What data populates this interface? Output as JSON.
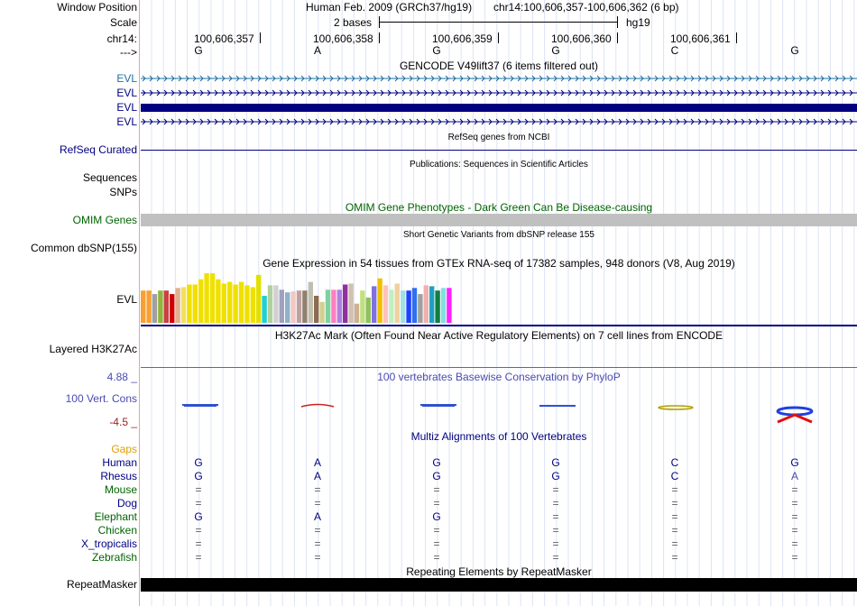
{
  "header": {
    "window_position_label": "Window Position",
    "scale_label": "Scale",
    "chrom_label": "chr14:",
    "strand_label": "--->",
    "assembly": "Human Feb. 2009 (GRCh37/hg19)",
    "position": "chr14:100,606,357-100,606,362 (6 bp)",
    "scale_text": "2 bases",
    "db": "hg19",
    "ticks": [
      "100,606,357",
      "100,606,358",
      "100,606,359",
      "100,606,360",
      "100,606,361"
    ],
    "bases": [
      "G",
      "A",
      "G",
      "G",
      "C",
      "G"
    ]
  },
  "gencode": {
    "title": "GENCODE V49lift37 (6 items filtered out)",
    "labels": [
      "EVL",
      "EVL",
      "EVL",
      "EVL"
    ]
  },
  "refseq": {
    "label": "RefSeq Curated",
    "title": "RefSeq genes from NCBI"
  },
  "publications": {
    "title": "Publications: Sequences in Scientific Articles",
    "labels": [
      "Sequences",
      "SNPs"
    ]
  },
  "omim": {
    "title": "OMIM Gene Phenotypes - Dark Green Can Be Disease-causing",
    "label": "OMIM Genes"
  },
  "dbsnp": {
    "label": "Common dbSNP(155)",
    "title": "Short Genetic Variants from dbSNP release 155"
  },
  "gtex": {
    "title": "Gene Expression in 54 tissues from GTEx RNA-seq of 17382 samples, 948 donors (V8, Aug 2019)",
    "label": "EVL"
  },
  "chart_data": {
    "type": "bar",
    "title": "Gene Expression in 54 tissues from GTEx RNA-seq of 17382 samples, 948 donors (V8, Aug 2019)",
    "values": [
      37,
      37,
      33,
      37,
      37,
      33,
      40,
      41,
      44,
      44,
      50,
      57,
      57,
      50,
      45,
      47,
      44,
      47,
      43,
      41,
      55,
      31,
      43,
      43,
      38,
      35,
      36,
      37,
      37,
      47,
      31,
      24,
      38,
      38,
      38,
      44,
      45,
      22,
      37,
      29,
      42,
      51,
      43,
      38,
      45,
      37,
      37,
      40,
      33,
      43,
      42,
      37,
      40,
      40
    ],
    "colors": [
      "#f8a033",
      "#f8a033",
      "#a0a0a0",
      "#90b43c",
      "#cc4040",
      "#d00000",
      "#e0b090",
      "#f0e060",
      "#f0e000",
      "#f0e000",
      "#f0e000",
      "#f0e000",
      "#f0e000",
      "#f0e000",
      "#f0e000",
      "#f0e000",
      "#f0e000",
      "#f0e000",
      "#f0e000",
      "#f0e000",
      "#e0e000",
      "#20d0d0",
      "#b0d0a0",
      "#d0d0d0",
      "#a0a0c0",
      "#90b0c8",
      "#f0c8c0",
      "#c0a0a0",
      "#908070",
      "#c0c0b0",
      "#8c6c50",
      "#d0d090",
      "#80d0a0",
      "#ff80c0",
      "#b080e0",
      "#9030a0",
      "#d0c0b0",
      "#d0b090",
      "#c0e080",
      "#90c060",
      "#8070e0",
      "#f0c000",
      "#ffc0c0",
      "#c0f0c0",
      "#f0d0a0",
      "#a0e0e0",
      "#2040ff",
      "#3070f0",
      "#a0a0a0",
      "#f0b0b0",
      "#20a0c0",
      "#108040",
      "#80e0e0",
      "#ff20ff"
    ]
  },
  "h3k27ac": {
    "label": "Layered H3K27Ac",
    "title": "H3K27Ac Mark (Often Found Near Active Regulatory Elements) on 7 cell lines from ENCODE"
  },
  "conservation": {
    "title": "100 vertebrates Basewise Conservation by PhyloP",
    "label": "100 Vert. Cons",
    "max_label": "4.88 _",
    "min_label": "-4.5 _"
  },
  "multiz": {
    "title": "Multiz Alignments of 100 Vertebrates",
    "gaps_label": "Gaps",
    "species": [
      {
        "name": "Human",
        "bases": [
          "G",
          "A",
          "G",
          "G",
          "C",
          "G"
        ]
      },
      {
        "name": "Rhesus",
        "bases": [
          "G",
          "A",
          "G",
          "G",
          "C",
          "A"
        ]
      },
      {
        "name": "Mouse",
        "bases": [
          "=",
          "=",
          "=",
          "=",
          "=",
          "="
        ]
      },
      {
        "name": "Dog",
        "bases": [
          "=",
          "=",
          "=",
          "=",
          "=",
          "="
        ]
      },
      {
        "name": "Elephant",
        "bases": [
          "G",
          "A",
          "G",
          "=",
          "=",
          "="
        ]
      },
      {
        "name": "Chicken",
        "bases": [
          "=",
          "=",
          "=",
          "=",
          "=",
          "="
        ]
      },
      {
        "name": "X_tropicalis",
        "bases": [
          "=",
          "=",
          "=",
          "=",
          "=",
          "="
        ]
      },
      {
        "name": "Zebrafish",
        "bases": [
          "=",
          "=",
          "=",
          "=",
          "=",
          "="
        ]
      }
    ]
  },
  "repeatmasker": {
    "title": "Repeating Elements by RepeatMasker",
    "label": "RepeatMasker"
  },
  "colors": {
    "navy": "#000080",
    "omim_green": "#006400",
    "omim_bar": "#c0c0c0",
    "gencode_first": "#1e6fa0",
    "cons_max": "#4a4ab0",
    "cons_min": "#a02020",
    "gaps": "#e0a000"
  }
}
